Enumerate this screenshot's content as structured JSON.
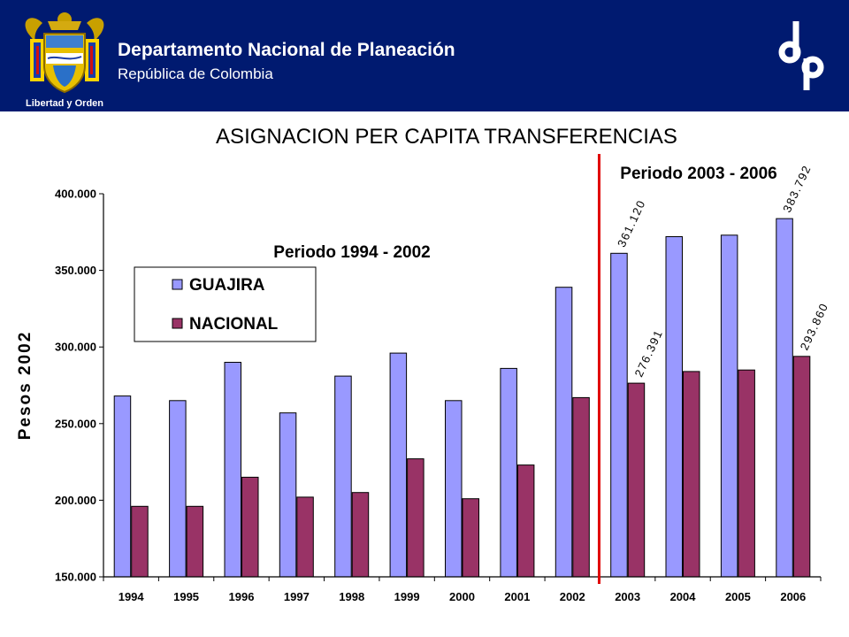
{
  "header": {
    "org_name": "Departamento Nacional de Planeación",
    "org_sub": "República de Colombia",
    "motto": "Libertad y Orden",
    "crest_icon": "colombia-coat-of-arms-icon",
    "logo_icon": "dnp-logo-icon",
    "bg_color": "#001a70"
  },
  "chart_data": {
    "type": "bar",
    "title": "ASIGNACION PER CAPITA TRANSFERENCIAS",
    "xlabel": "",
    "ylabel": "Pesos 2002",
    "ylim": [
      150000,
      400000
    ],
    "yticks": [
      150000,
      200000,
      250000,
      300000,
      350000,
      400000
    ],
    "ytick_labels": [
      "150.000",
      "200.000",
      "250.000",
      "300.000",
      "350.000",
      "400.000"
    ],
    "categories": [
      "1994",
      "1995",
      "1996",
      "1997",
      "1998",
      "1999",
      "2000",
      "2001",
      "2002",
      "2003",
      "2004",
      "2005",
      "2006"
    ],
    "series": [
      {
        "name": "GUAJIRA",
        "color": "#9999ff",
        "values": [
          268000,
          265000,
          290000,
          257000,
          281000,
          296000,
          265000,
          286000,
          339000,
          361120,
          372000,
          373000,
          383792
        ]
      },
      {
        "name": "NACIONAL",
        "color": "#993366",
        "values": [
          196000,
          196000,
          215000,
          202000,
          205000,
          227000,
          201000,
          223000,
          267000,
          276391,
          284000,
          285000,
          293860
        ]
      }
    ],
    "data_labels": [
      {
        "series": 0,
        "index": 9,
        "text": "361.120"
      },
      {
        "series": 1,
        "index": 9,
        "text": "276.391"
      },
      {
        "series": 0,
        "index": 12,
        "text": "383.792"
      },
      {
        "series": 1,
        "index": 12,
        "text": "293.860"
      }
    ],
    "annotations": [
      {
        "text": "Periodo 1994 - 2002"
      },
      {
        "text": "Periodo 2003 - 2006"
      }
    ],
    "divider": {
      "between": [
        "2002",
        "2003"
      ],
      "color": "#e00000"
    },
    "legend": "left",
    "grid": false
  }
}
